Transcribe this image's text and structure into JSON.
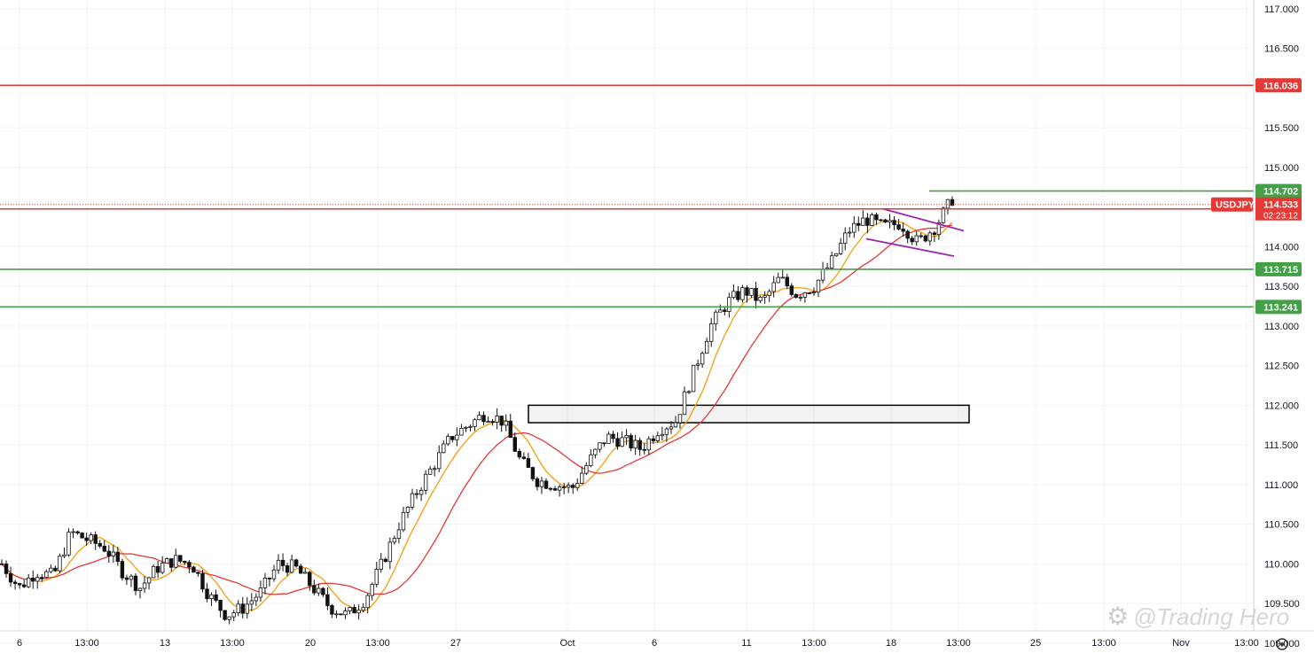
{
  "chart_data": {
    "type": "candlestick",
    "symbol": "USDJPY",
    "ylim": [
      109.2,
      117.05
    ],
    "y_ticks": [
      "117.000",
      "116.500",
      "115.500",
      "115.000",
      "114.000",
      "113.500",
      "113.000",
      "112.500",
      "112.000",
      "111.500",
      "111.000",
      "110.500",
      "110.000",
      "109.500",
      "109.000"
    ],
    "x_ticks": [
      "6",
      "13:00",
      "13",
      "13:00",
      "20",
      "13:00",
      "27",
      "Oct",
      "6",
      "11",
      "13:00",
      "18",
      "13:00",
      "25",
      "13:00",
      "Nov",
      "13:00"
    ],
    "horizontal_lines": [
      {
        "label": "116.036",
        "price": 116.036,
        "color": "#e53935"
      },
      {
        "label": "114.702",
        "price": 114.702,
        "color": "#43a047"
      },
      {
        "label": "114.477",
        "price": 114.477,
        "color": "#e53935"
      },
      {
        "label": "113.715",
        "price": 113.715,
        "color": "#43a047"
      },
      {
        "label": "113.241",
        "price": 113.241,
        "color": "#43a047"
      }
    ],
    "last_price": {
      "symbol": "USDJPY",
      "price": "114.533",
      "countdown": "02:23:12"
    },
    "zone": {
      "price_top": 112.0,
      "price_bottom": 111.78
    },
    "moving_averages": [
      {
        "color": "#f59e0b"
      },
      {
        "color": "#e53935"
      }
    ],
    "ohlc_path": [
      110.0,
      109.7,
      109.9,
      109.85,
      110.4,
      110.3,
      110.2,
      109.9,
      109.7,
      109.95,
      110.05,
      110.0,
      109.6,
      109.35,
      109.45,
      109.65,
      110.0,
      109.95,
      109.7,
      109.45,
      109.35,
      109.55,
      110.0,
      110.5,
      110.9,
      111.25,
      111.6,
      111.75,
      111.9,
      111.8,
      111.3,
      111.05,
      111.0,
      110.95,
      111.3,
      111.6,
      111.55,
      111.45,
      111.7,
      111.8,
      112.4,
      113.0,
      113.3,
      113.45,
      113.3,
      113.6,
      113.4,
      113.5,
      113.8,
      114.2,
      114.35,
      114.25,
      114.3,
      114.05,
      114.25,
      114.6
    ]
  },
  "watermark": "@Trading Hero",
  "colors": {
    "green": "#43a047",
    "red": "#e53935",
    "candle_up": "#26a69a",
    "purple": "#9c27b0"
  }
}
